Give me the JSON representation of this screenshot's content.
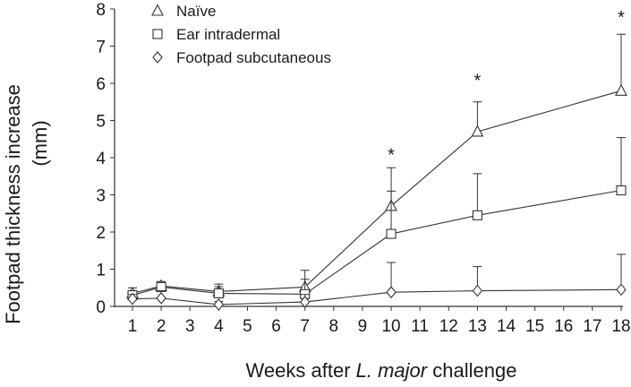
{
  "chart_data": {
    "type": "line",
    "xlabel_prefix": "Weeks after ",
    "xlabel_species": "L. major",
    "xlabel_suffix": " challenge",
    "ylabel_line1": "Footpad thickness increase",
    "ylabel_line2": "(mm)",
    "x_ticks": [
      "1",
      "2",
      "3",
      "4",
      "5",
      "6",
      "7",
      "8",
      "9",
      "10",
      "11",
      "12",
      "13",
      "14",
      "15",
      "16",
      "17",
      "18"
    ],
    "y_ticks": [
      "0",
      "1",
      "2",
      "3",
      "4",
      "5",
      "6",
      "7",
      "8"
    ],
    "ylim": [
      0,
      8
    ],
    "xlim": [
      1,
      18
    ],
    "series": [
      {
        "name": "Naïve",
        "marker": "triangle",
        "points": [
          {
            "x": 1,
            "y": 0.35,
            "err": 0.15
          },
          {
            "x": 2,
            "y": 0.55,
            "err": 0.12
          },
          {
            "x": 4,
            "y": 0.4,
            "err": 0.2
          },
          {
            "x": 7,
            "y": 0.52,
            "err": 0.45
          },
          {
            "x": 10,
            "y": 2.7,
            "err": 1.03
          },
          {
            "x": 13,
            "y": 4.7,
            "err": 0.8
          },
          {
            "x": 18,
            "y": 5.8,
            "err": 1.52
          }
        ]
      },
      {
        "name": "Ear intradermal",
        "marker": "square",
        "points": [
          {
            "x": 1,
            "y": 0.3,
            "err": 0.12
          },
          {
            "x": 2,
            "y": 0.52,
            "err": 0.12
          },
          {
            "x": 4,
            "y": 0.35,
            "err": 0.18
          },
          {
            "x": 7,
            "y": 0.33,
            "err": 0.4
          },
          {
            "x": 10,
            "y": 1.95,
            "err": 1.15
          },
          {
            "x": 13,
            "y": 2.45,
            "err": 1.12
          },
          {
            "x": 18,
            "y": 3.12,
            "err": 1.42
          }
        ]
      },
      {
        "name": "Footpad subcutaneous",
        "marker": "diamond",
        "points": [
          {
            "x": 1,
            "y": 0.2,
            "err": 0.12
          },
          {
            "x": 2,
            "y": 0.22,
            "err": 0.2
          },
          {
            "x": 4,
            "y": 0.05,
            "err": 0.08
          },
          {
            "x": 7,
            "y": 0.12,
            "err": 0.2
          },
          {
            "x": 10,
            "y": 0.38,
            "err": 0.8
          },
          {
            "x": 13,
            "y": 0.42,
            "err": 0.65
          },
          {
            "x": 18,
            "y": 0.45,
            "err": 0.95
          }
        ]
      }
    ],
    "significance": [
      {
        "x": 10,
        "y": 4.25,
        "label": "*"
      },
      {
        "x": 13,
        "y": 6.25,
        "label": "*"
      },
      {
        "x": 18,
        "y": 7.95,
        "label": "*"
      }
    ],
    "legend_position": "top-left"
  }
}
